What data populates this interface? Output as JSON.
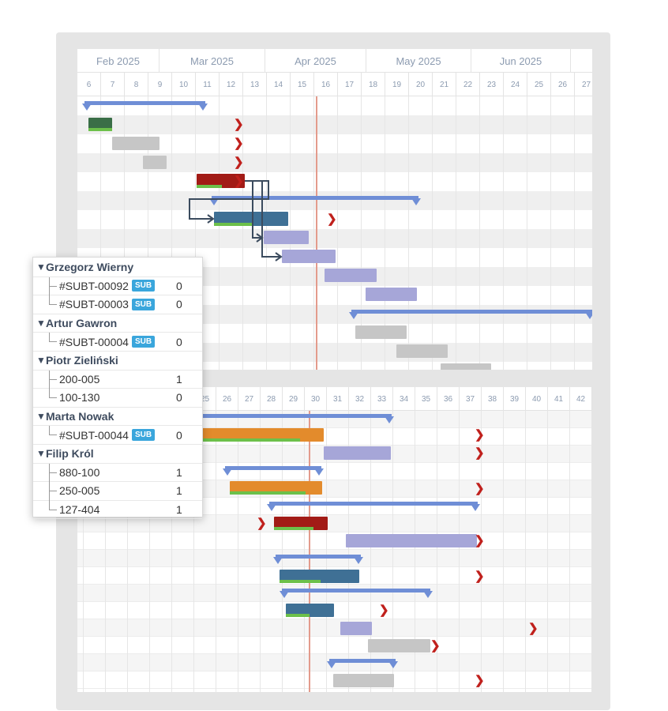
{
  "top_timeline": {
    "months": [
      {
        "label": "Feb 2025"
      },
      {
        "label": "Mar 2025"
      },
      {
        "label": "Apr 2025"
      },
      {
        "label": "May 2025"
      },
      {
        "label": "Jun 2025"
      }
    ],
    "days": [
      "6",
      "7",
      "8",
      "9",
      "10",
      "11",
      "12",
      "13",
      "14",
      "15",
      "16",
      "17",
      "18",
      "19",
      "20",
      "21",
      "22",
      "23",
      "24",
      "25",
      "26",
      "27"
    ]
  },
  "bottom_timeline": {
    "weeks": [
      "25",
      "26",
      "27",
      "28",
      "29",
      "30",
      "31",
      "32",
      "33",
      "34",
      "35",
      "36",
      "37",
      "38",
      "39",
      "40",
      "41",
      "42"
    ]
  },
  "people_popup": {
    "groups": [
      {
        "name": "Grzegorz Wierny",
        "items": [
          {
            "label": "#SUBT-00092",
            "badge": "SUB",
            "count": "0"
          },
          {
            "label": "#SUBT-00003",
            "badge": "SUB",
            "count": "0"
          }
        ]
      },
      {
        "name": "Artur Gawron",
        "items": [
          {
            "label": "#SUBT-00004",
            "badge": "SUB",
            "count": "0"
          }
        ]
      },
      {
        "name": "Piotr Zieliński",
        "items": [
          {
            "label": "200-005",
            "badge": "",
            "count": "1"
          },
          {
            "label": "100-130",
            "badge": "",
            "count": "0"
          }
        ]
      },
      {
        "name": "Marta Nowak",
        "items": [
          {
            "label": "#SUBT-00044",
            "badge": "SUB",
            "count": "0"
          }
        ]
      },
      {
        "name": "Filip Król",
        "items": [
          {
            "label": "880-100",
            "badge": "",
            "count": "1"
          },
          {
            "label": "250-005",
            "badge": "",
            "count": "1"
          },
          {
            "label": "127-404",
            "badge": "",
            "count": "1"
          }
        ]
      }
    ]
  },
  "colors": {
    "summary": "#6f8ed6",
    "progress": "#6cc04a",
    "deadline_chevron": "#c0201c",
    "today_line": "#e39b8c",
    "task_lavender": "#a6a6d8",
    "task_gray": "#c6c6c6",
    "task_blue": "#3f7095",
    "task_orange": "#e38b2c",
    "task_darkred": "#a21b16",
    "task_darkgreen": "#3a6e47"
  },
  "icons": {
    "deadline": "chevron-right-icon",
    "collapse": "caret-down-icon"
  }
}
